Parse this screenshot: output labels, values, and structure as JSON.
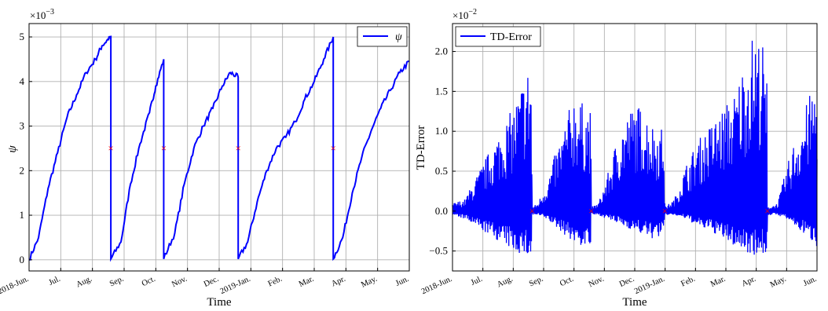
{
  "chart_data": [
    {
      "type": "line",
      "xlabel": "Time",
      "ylabel": "ψ",
      "offset_label": "×10",
      "offset_exp": "−3",
      "x_tick_labels": [
        "2018-Jun.",
        "Jul.",
        "Aug.",
        "Sep.",
        "Oct.",
        "Nov.",
        "Dec.",
        "2019-Jan.",
        "Feb.",
        "Mar.",
        "Apr.",
        "May.",
        "Jun."
      ],
      "y_tick_labels": [
        "0",
        "1",
        "2",
        "3",
        "4",
        "5"
      ],
      "ylim": [
        -0.25,
        5.3
      ],
      "grid": true,
      "legend_position": "top-right",
      "series": [
        {
          "name": "ψ",
          "color": "#0000ff",
          "x_month": [
            0,
            0.3,
            0.6,
            0.9,
            1.2,
            1.5,
            1.8,
            2.1,
            2.3,
            2.5,
            2.58,
            2.58,
            2.9,
            3.2,
            3.5,
            3.8,
            4.0,
            4.25,
            4.25,
            4.6,
            4.9,
            5.2,
            5.5,
            5.8,
            6.1,
            6.35,
            6.6,
            6.6,
            6.9,
            7.2,
            7.5,
            7.8,
            8.1,
            8.4,
            8.7,
            9.0,
            9.3,
            9.6,
            9.6,
            9.9,
            10.2,
            10.5,
            10.8,
            11.1,
            11.4,
            11.7,
            12.0
          ],
          "y": [
            0.0,
            0.5,
            1.6,
            2.4,
            3.2,
            3.7,
            4.2,
            4.5,
            4.8,
            4.95,
            5.0,
            0.02,
            0.4,
            1.7,
            2.6,
            3.3,
            3.9,
            4.5,
            0.02,
            0.6,
            1.7,
            2.5,
            3.0,
            3.4,
            3.9,
            4.2,
            4.1,
            0.02,
            0.4,
            1.3,
            2.0,
            2.5,
            2.75,
            3.1,
            3.6,
            4.0,
            4.5,
            5.0,
            0.02,
            0.5,
            1.5,
            2.3,
            2.9,
            3.4,
            3.8,
            4.2,
            4.45
          ]
        }
      ],
      "markers": {
        "color": "#ff0000",
        "symbol": "×",
        "x_month": [
          2.58,
          4.25,
          6.6,
          9.6
        ],
        "y": [
          2.5,
          2.5,
          2.5,
          2.5
        ]
      }
    },
    {
      "type": "line",
      "xlabel": "Time",
      "ylabel": "TD-Error",
      "offset_label": "×10",
      "offset_exp": "−2",
      "x_tick_labels": [
        "2018-Jun.",
        "Jul.",
        "Aug.",
        "Sep.",
        "Oct.",
        "Nov.",
        "Dec.",
        "2019-Jan.",
        "Feb.",
        "Mar.",
        "Apr.",
        "May.",
        "Jun."
      ],
      "y_tick_labels": [
        "−0.5",
        "0.0",
        "0.5",
        "1.0",
        "1.5",
        "2.0"
      ],
      "ylim": [
        -0.75,
        2.35
      ],
      "grid": true,
      "legend_position": "top-left",
      "series": [
        {
          "name": "TD-Error",
          "color": "#0000ff",
          "x_month": [
            0,
            0.4,
            0.8,
            1.2,
            1.6,
            2.0,
            2.3,
            2.6,
            2.62,
            2.8,
            3.1,
            3.4,
            3.7,
            4.0,
            4.3,
            4.55,
            4.57,
            4.8,
            5.1,
            5.4,
            5.7,
            6.0,
            6.3,
            6.6,
            6.97,
            6.99,
            7.3,
            7.7,
            8.1,
            8.5,
            8.9,
            9.3,
            9.6,
            9.9,
            10.2,
            10.35,
            10.37,
            10.7,
            11.0,
            11.3,
            11.6,
            11.9,
            12.0
          ],
          "upper": [
            0.1,
            0.15,
            0.45,
            0.75,
            1.05,
            1.3,
            1.65,
            1.95,
            0.05,
            0.1,
            0.35,
            0.75,
            1.1,
            1.5,
            1.35,
            1.3,
            0.05,
            0.1,
            0.45,
            0.9,
            1.2,
            1.35,
            1.3,
            1.1,
            1.05,
            0.05,
            0.15,
            0.6,
            0.9,
            1.1,
            1.3,
            1.5,
            1.9,
            2.25,
            2.15,
            1.65,
            0.05,
            0.1,
            0.55,
            0.95,
            1.3,
            1.6,
            1.65
          ],
          "lower": [
            -0.05,
            -0.1,
            -0.2,
            -0.3,
            -0.4,
            -0.5,
            -0.55,
            -0.6,
            -0.05,
            -0.05,
            -0.1,
            -0.2,
            -0.3,
            -0.4,
            -0.45,
            -0.45,
            -0.05,
            -0.05,
            -0.1,
            -0.15,
            -0.2,
            -0.25,
            -0.3,
            -0.35,
            -0.3,
            -0.05,
            -0.05,
            -0.1,
            -0.2,
            -0.25,
            -0.35,
            -0.45,
            -0.5,
            -0.55,
            -0.55,
            -0.58,
            -0.05,
            -0.05,
            -0.1,
            -0.2,
            -0.3,
            -0.4,
            -0.45
          ]
        }
      ],
      "markers": {
        "color": "#ff0000",
        "symbol": "×",
        "x_month": [
          2.62,
          4.57,
          6.99,
          10.37
        ],
        "y": [
          0.0,
          0.0,
          0.0,
          0.0
        ]
      }
    }
  ]
}
